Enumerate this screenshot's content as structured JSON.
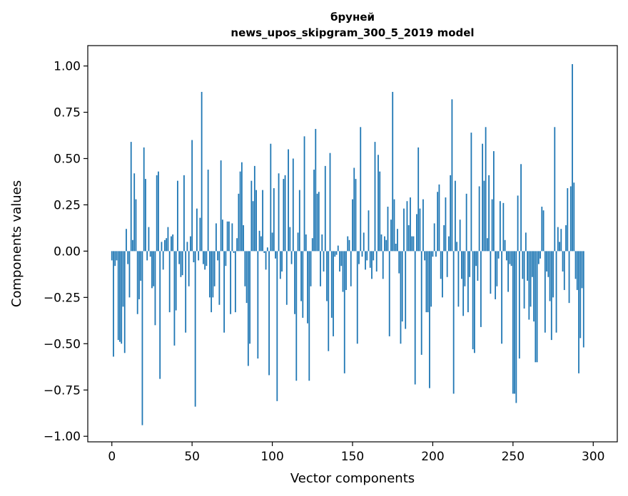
{
  "chart_data": {
    "type": "bar",
    "title": "бруней",
    "subtitle": "news_upos_skipgram_300_5_2019 model",
    "xlabel": "Vector components",
    "ylabel": "Components values",
    "xlim": [
      -15,
      315
    ],
    "ylim": [
      -1.03,
      1.11
    ],
    "xticks": [
      0,
      50,
      100,
      150,
      200,
      250,
      300
    ],
    "xtick_labels": [
      "0",
      "50",
      "100",
      "150",
      "200",
      "250",
      "300"
    ],
    "yticks": [
      -1.0,
      -0.75,
      -0.5,
      -0.25,
      0.0,
      0.25,
      0.5,
      0.75,
      1.0
    ],
    "ytick_labels": [
      "−1.00",
      "−0.75",
      "−0.50",
      "−0.25",
      "0.00",
      "0.25",
      "0.50",
      "0.75",
      "1.00"
    ],
    "bar_color": "#1f77b4",
    "values": [
      -0.05,
      -0.57,
      -0.08,
      -0.05,
      -0.48,
      -0.49,
      -0.5,
      -0.3,
      -0.55,
      0.12,
      -0.07,
      -0.25,
      0.59,
      0.06,
      0.42,
      0.28,
      -0.34,
      -0.26,
      -0.16,
      -0.94,
      0.56,
      0.39,
      -0.05,
      0.13,
      -0.03,
      -0.2,
      -0.19,
      -0.4,
      0.41,
      0.43,
      -0.69,
      0.05,
      -0.1,
      0.06,
      0.07,
      0.13,
      -0.33,
      0.08,
      0.09,
      -0.51,
      -0.32,
      0.38,
      -0.07,
      -0.14,
      -0.13,
      0.41,
      -0.44,
      0.05,
      -0.19,
      0.08,
      0.6,
      -0.06,
      -0.84,
      0.23,
      -0.05,
      0.18,
      0.86,
      -0.07,
      -0.1,
      -0.08,
      0.44,
      -0.25,
      -0.33,
      -0.25,
      -0.19,
      0.15,
      -0.05,
      -0.29,
      0.49,
      0.17,
      -0.44,
      -0.08,
      0.16,
      0.16,
      -0.34,
      0.15,
      -0.01,
      -0.33,
      0.07,
      0.31,
      0.43,
      0.48,
      0.14,
      -0.19,
      -0.28,
      -0.62,
      -0.5,
      0.38,
      0.27,
      0.46,
      0.33,
      -0.58,
      0.11,
      0.08,
      0.33,
      -0.01,
      -0.1,
      0.02,
      -0.67,
      0.58,
      0.1,
      0.34,
      -0.04,
      -0.81,
      0.42,
      -0.15,
      -0.11,
      0.39,
      0.41,
      -0.29,
      0.55,
      0.13,
      -0.07,
      0.5,
      -0.34,
      -0.7,
      0.1,
      0.33,
      -0.27,
      -0.36,
      0.62,
      0.09,
      -0.39,
      -0.7,
      -0.19,
      0.07,
      0.44,
      0.66,
      0.31,
      0.32,
      -0.19,
      0.09,
      -0.11,
      0.46,
      -0.27,
      -0.54,
      0.53,
      -0.36,
      -0.46,
      -0.03,
      -0.02,
      0.03,
      -0.11,
      -0.08,
      -0.22,
      -0.66,
      -0.21,
      0.08,
      0.06,
      -0.19,
      0.28,
      0.45,
      0.39,
      -0.5,
      -0.07,
      0.67,
      -0.03,
      0.1,
      -0.1,
      -0.05,
      0.22,
      -0.09,
      -0.15,
      -0.05,
      0.59,
      -0.11,
      0.52,
      0.43,
      0.09,
      -0.15,
      0.08,
      0.06,
      0.24,
      -0.46,
      0.17,
      0.86,
      0.28,
      0.04,
      0.12,
      -0.12,
      -0.5,
      -0.38,
      0.23,
      -0.42,
      0.27,
      0.14,
      0.29,
      0.08,
      0.08,
      -0.72,
      0.2,
      0.56,
      0.23,
      -0.56,
      0.28,
      -0.05,
      -0.33,
      -0.33,
      -0.74,
      -0.3,
      -0.03,
      0.15,
      -0.03,
      0.32,
      0.36,
      -0.15,
      -0.25,
      0.14,
      0.29,
      -0.14,
      0.08,
      0.41,
      0.82,
      -0.77,
      0.38,
      0.05,
      -0.3,
      0.17,
      -0.15,
      -0.35,
      -0.19,
      0.31,
      -0.33,
      -0.14,
      0.64,
      -0.53,
      -0.55,
      -0.08,
      -0.16,
      0.35,
      -0.41,
      0.58,
      0.38,
      0.67,
      0.07,
      0.41,
      -0.23,
      0.28,
      0.54,
      -0.26,
      -0.19,
      -0.04,
      0.27,
      -0.5,
      0.26,
      0.06,
      -0.05,
      -0.22,
      -0.07,
      -0.08,
      -0.77,
      -0.77,
      -0.82,
      0.3,
      -0.58,
      0.47,
      -0.15,
      -0.31,
      0.1,
      -0.16,
      -0.37,
      -0.3,
      -0.14,
      -0.38,
      -0.6,
      -0.6,
      -0.07,
      -0.04,
      0.24,
      0.22,
      -0.44,
      -0.11,
      -0.14,
      -0.27,
      -0.48,
      -0.25,
      0.67,
      -0.44,
      0.13,
      0.05,
      0.12,
      -0.11,
      -0.21,
      0.14,
      0.34,
      -0.28,
      0.35,
      1.01,
      0.37,
      -0.15,
      -0.21,
      -0.66,
      -0.47,
      -0.2,
      -0.52
    ]
  }
}
